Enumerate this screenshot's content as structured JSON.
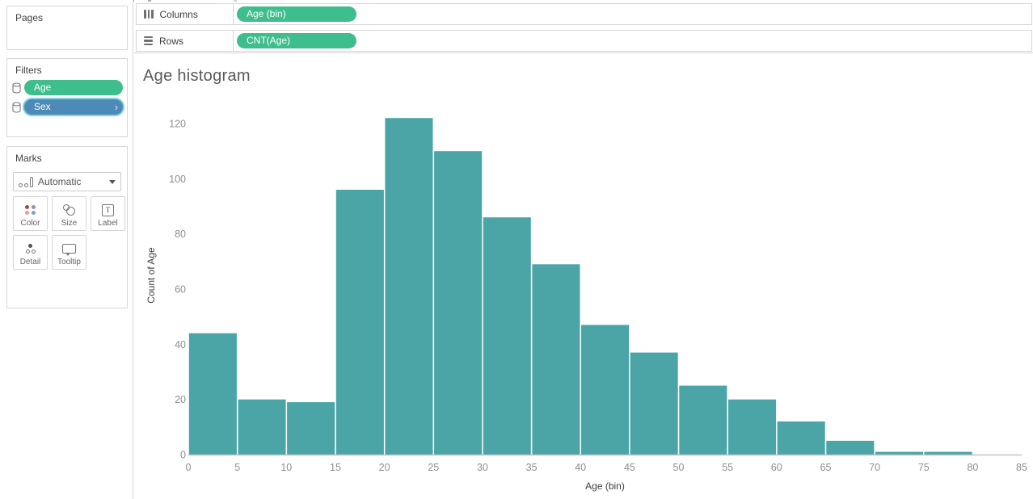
{
  "colors": {
    "pill_green": "#3ebd8d",
    "pill_blue": "#4e8ab8",
    "bar_teal": "#4ba5a7",
    "axis_line": "#c2c2c2",
    "tick_label": "#8e8e8e",
    "axis_title": "#3f3f3f"
  },
  "left_panel": {
    "pages_label": "Pages",
    "filters_label": "Filters",
    "filter_pills": [
      {
        "label": "Age",
        "color_key": "pill_green"
      },
      {
        "label": "Sex",
        "color_key": "pill_blue"
      }
    ],
    "marks": {
      "label": "Marks",
      "mark_type": "Automatic",
      "buttons": [
        {
          "label": "Color"
        },
        {
          "label": "Size"
        },
        {
          "label": "Label"
        },
        {
          "label": "Detail"
        },
        {
          "label": "Tooltip"
        }
      ]
    }
  },
  "shelves": {
    "columns": {
      "label": "Columns",
      "pill": "Age (bin)"
    },
    "rows": {
      "label": "Rows",
      "pill": "CNT(Age)"
    }
  },
  "chart_data": {
    "type": "bar",
    "title": "Age histogram",
    "xlabel": "Age (bin)",
    "ylabel": "Count of Age",
    "bin_width": 5,
    "bin_starts": [
      0,
      5,
      10,
      15,
      20,
      25,
      30,
      35,
      40,
      45,
      50,
      55,
      60,
      65,
      70,
      75
    ],
    "values": [
      44,
      20,
      19,
      96,
      122,
      110,
      86,
      69,
      47,
      37,
      25,
      20,
      12,
      5,
      1,
      1
    ],
    "x_ticks": [
      0,
      5,
      10,
      15,
      20,
      25,
      30,
      35,
      40,
      45,
      50,
      55,
      60,
      65,
      70,
      75,
      80,
      85
    ],
    "y_ticks": [
      0,
      20,
      40,
      60,
      80,
      100,
      120
    ],
    "xlim": [
      0,
      85
    ],
    "ylim": [
      0,
      145
    ],
    "grid": false,
    "legend": "none"
  }
}
